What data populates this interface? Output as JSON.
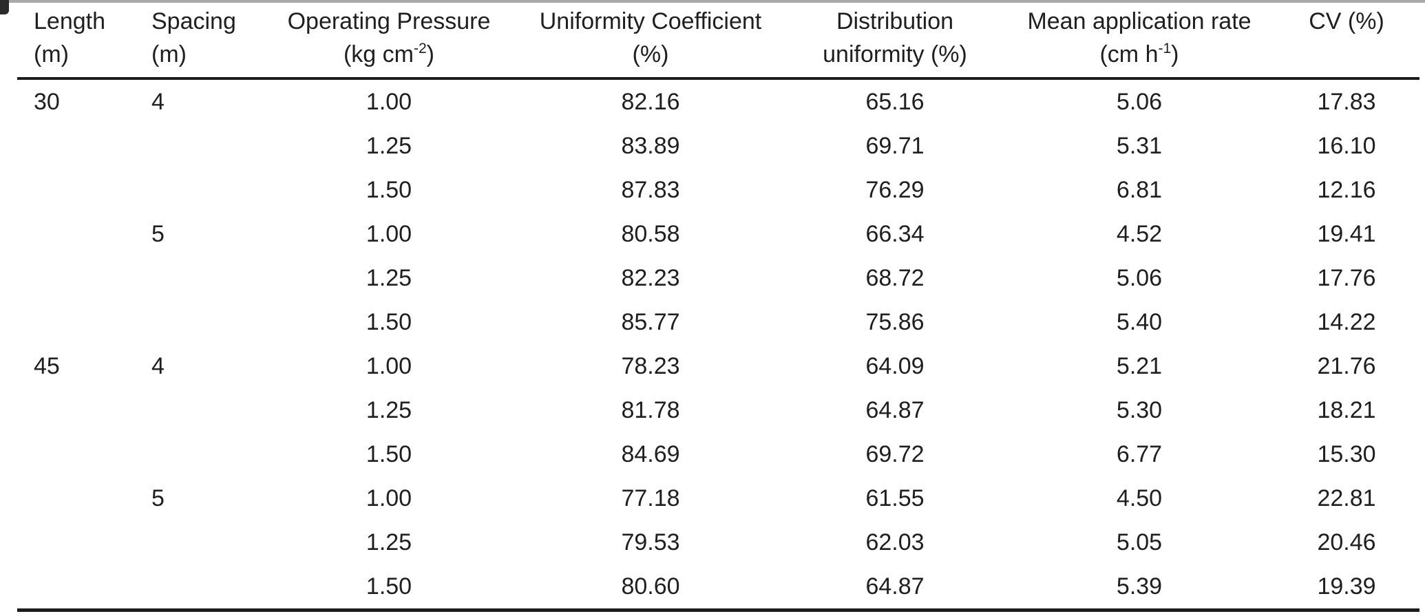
{
  "colors": {
    "text": "#1f1f1f",
    "rule": "#1c1c1c",
    "background": "#ffffff",
    "scan_artifact": "#8d8d8d"
  },
  "table": {
    "columns": [
      {
        "id": "length",
        "align": "left",
        "line1": "Length",
        "line2": [
          {
            "t": "(m)"
          }
        ]
      },
      {
        "id": "spacing",
        "align": "left",
        "line1": "Spacing",
        "line2": [
          {
            "t": "(m)"
          }
        ]
      },
      {
        "id": "operating-pressure",
        "align": "center",
        "line1": "Operating Pressure",
        "line2": [
          {
            "t": "(kg cm"
          },
          {
            "t": "-2",
            "sup": true
          },
          {
            "t": ")"
          }
        ]
      },
      {
        "id": "uniformity-coefficient",
        "align": "center",
        "line1": "Uniformity Coefficient",
        "line2": [
          {
            "t": "(%)"
          }
        ]
      },
      {
        "id": "distribution-uniformity",
        "align": "center",
        "line1": "Distribution",
        "line2": [
          {
            "t": "uniformity (%)"
          }
        ]
      },
      {
        "id": "mean-application-rate",
        "align": "center",
        "line1": "Mean application rate",
        "line2": [
          {
            "t": "(cm h"
          },
          {
            "t": "-1",
            "sup": true
          },
          {
            "t": ")"
          }
        ]
      },
      {
        "id": "cv",
        "align": "center",
        "line1": "CV (%)",
        "line2": []
      }
    ],
    "rows": [
      [
        "30",
        "4",
        "1.00",
        "82.16",
        "65.16",
        "5.06",
        "17.83"
      ],
      [
        "",
        "",
        "1.25",
        "83.89",
        "69.71",
        "5.31",
        "16.10"
      ],
      [
        "",
        "",
        "1.50",
        "87.83",
        "76.29",
        "6.81",
        "12.16"
      ],
      [
        "",
        "5",
        "1.00",
        "80.58",
        "66.34",
        "4.52",
        "19.41"
      ],
      [
        "",
        "",
        "1.25",
        "82.23",
        "68.72",
        "5.06",
        "17.76"
      ],
      [
        "",
        "",
        "1.50",
        "85.77",
        "75.86",
        "5.40",
        "14.22"
      ],
      [
        "45",
        "4",
        "1.00",
        "78.23",
        "64.09",
        "5.21",
        "21.76"
      ],
      [
        "",
        "",
        "1.25",
        "81.78",
        "64.87",
        "5.30",
        "18.21"
      ],
      [
        "",
        "",
        "1.50",
        "84.69",
        "69.72",
        "6.77",
        "15.30"
      ],
      [
        "",
        "5",
        "1.00",
        "77.18",
        "61.55",
        "4.50",
        "22.81"
      ],
      [
        "",
        "",
        "1.25",
        "79.53",
        "62.03",
        "5.05",
        "20.46"
      ],
      [
        "",
        "",
        "1.50",
        "80.60",
        "64.87",
        "5.39",
        "19.39"
      ]
    ]
  }
}
